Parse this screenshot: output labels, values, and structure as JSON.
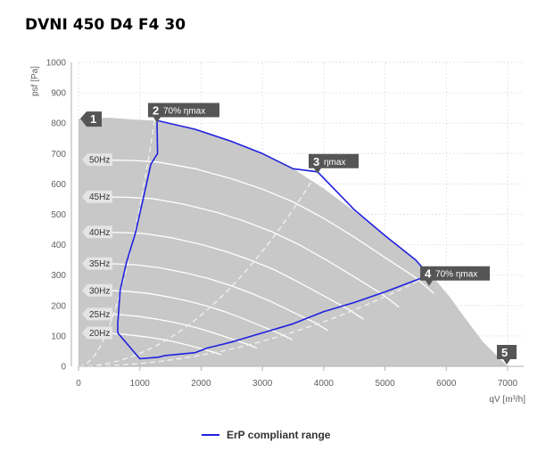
{
  "title": "DVNI 450 D4 F4 30",
  "chart_data": {
    "type": "line",
    "xlabel": "qV [m³/h]",
    "ylabel": "psf [Pa]",
    "xlim": [
      0,
      7000
    ],
    "ylim": [
      0,
      1000
    ],
    "x_ticks": [
      0,
      1000,
      2000,
      3000,
      4000,
      5000,
      6000,
      7000
    ],
    "y_ticks": [
      0,
      100,
      200,
      300,
      400,
      500,
      600,
      700,
      800,
      900,
      1000
    ],
    "envelope": {
      "x": [
        0,
        500,
        900,
        1300,
        1900,
        2500,
        3000,
        3500,
        4000,
        4500,
        5000,
        5500,
        5800,
        6050,
        6300,
        6600,
        7000
      ],
      "y": [
        815,
        818,
        812,
        808,
        780,
        740,
        700,
        650,
        585,
        510,
        430,
        350,
        290,
        230,
        160,
        80,
        0
      ]
    },
    "speed_curves": [
      {
        "name": "50Hz",
        "label_y": 680,
        "x": [
          120,
          900,
          1300,
          1900,
          2500,
          3000,
          3500,
          4000,
          4500,
          5000,
          5500,
          5800
        ],
        "y": [
          680,
          677,
          672,
          650,
          617,
          583,
          541,
          487,
          425,
          358,
          292,
          240
        ]
      },
      {
        "name": "45Hz",
        "label_y": 558,
        "x": [
          120,
          800,
          1200,
          1700,
          2250,
          2700,
          3150,
          3600,
          4050,
          4500,
          4950,
          5230
        ],
        "y": [
          558,
          556,
          552,
          534,
          507,
          478,
          443,
          400,
          349,
          294,
          238,
          195
        ]
      },
      {
        "name": "40Hz",
        "label_y": 442,
        "x": [
          120,
          720,
          1070,
          1520,
          2000,
          2400,
          2800,
          3200,
          3600,
          4000,
          4400,
          4650
        ],
        "y": [
          442,
          440,
          437,
          423,
          401,
          378,
          350,
          317,
          276,
          232,
          188,
          155
        ]
      },
      {
        "name": "35Hz",
        "label_y": 338,
        "x": [
          120,
          630,
          940,
          1330,
          1750,
          2100,
          2450,
          2800,
          3150,
          3500,
          3850,
          4070
        ],
        "y": [
          338,
          337,
          334,
          324,
          307,
          290,
          268,
          242,
          212,
          178,
          144,
          118
        ]
      },
      {
        "name": "30Hz",
        "label_y": 250,
        "x": [
          120,
          540,
          800,
          1140,
          1500,
          1800,
          2100,
          2400,
          2700,
          3000,
          3300,
          3490
        ],
        "y": [
          250,
          249,
          247,
          240,
          227,
          214,
          198,
          179,
          156,
          131,
          106,
          87
        ]
      },
      {
        "name": "25Hz",
        "label_y": 172,
        "x": [
          120,
          450,
          670,
          950,
          1250,
          1500,
          1750,
          2000,
          2250,
          2500,
          2750,
          2910
        ],
        "y": [
          172,
          171,
          170,
          165,
          156,
          147,
          136,
          123,
          107,
          90,
          73,
          60
        ]
      },
      {
        "name": "20Hz",
        "label_y": 110,
        "x": [
          120,
          360,
          540,
          760,
          1000,
          1200,
          1400,
          1600,
          1800,
          2000,
          2200,
          2330
        ],
        "y": [
          110,
          109,
          108,
          105,
          99,
          94,
          87,
          79,
          69,
          58,
          47,
          38
        ]
      }
    ],
    "efficiency_lines": {
      "x_70_left": [
        0,
        1240
      ],
      "y_70_left": [
        0,
        808
      ],
      "x_max": [
        0,
        3900
      ],
      "y_max": [
        0,
        640
      ],
      "x_70_right": [
        0,
        5720
      ],
      "y_70_right": [
        0,
        300
      ]
    },
    "erp_range": {
      "name": "ErP compliant range",
      "color": "#2020e0",
      "x": [
        1280,
        1300,
        1900,
        2500,
        3000,
        3500,
        3900,
        4500,
        5000,
        5500,
        5720,
        5000,
        4500,
        4000,
        3500,
        3000,
        2500,
        2100,
        1900,
        1400,
        1300,
        1000,
        640,
        640,
        680,
        780,
        930,
        1060,
        1180,
        1290,
        1280
      ],
      "y": [
        808,
        808,
        780,
        740,
        700,
        650,
        640,
        515,
        430,
        350,
        300,
        245,
        210,
        180,
        140,
        110,
        80,
        60,
        45,
        35,
        30,
        25,
        110,
        140,
        250,
        340,
        440,
        555,
        665,
        700,
        808
      ]
    },
    "markers": [
      {
        "id": "1",
        "label": "1",
        "sub": "",
        "x": 0,
        "y": 815
      },
      {
        "id": "2",
        "label": "2",
        "sub": "70% ηmax",
        "x": 1280,
        "y": 808
      },
      {
        "id": "3",
        "label": "3",
        "sub": "ηmax",
        "x": 3900,
        "y": 640
      },
      {
        "id": "4",
        "label": "4",
        "sub": "70% ηmax",
        "x": 5720,
        "y": 300
      },
      {
        "id": "5",
        "label": "5",
        "sub": "",
        "x": 7000,
        "y": 0
      }
    ],
    "legend": {
      "position": "bottom",
      "label": "ErP compliant range",
      "color": "#2020e0"
    },
    "area_color": "#c8c8c8",
    "grid": true
  }
}
